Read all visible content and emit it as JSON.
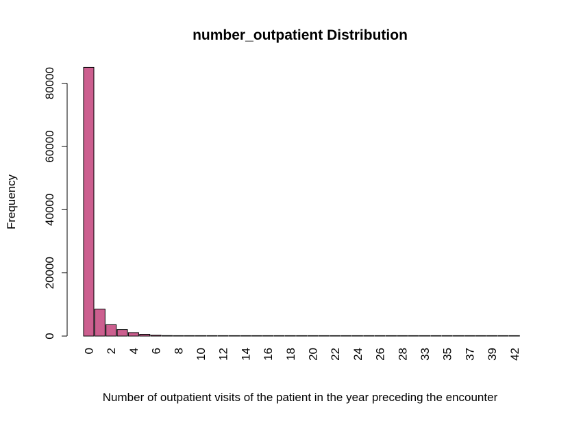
{
  "chart_data": {
    "type": "bar",
    "title": "number_outpatient Distribution",
    "xlabel": "Number of outpatient visits of the patient in the year preceding the encounter",
    "ylabel": "Frequency",
    "ylim": [
      0,
      85000
    ],
    "yticks": [
      "0",
      "20000",
      "40000",
      "60000",
      "80000"
    ],
    "bar_color": "#cc5f8f",
    "categories": [
      "0",
      "1",
      "2",
      "3",
      "4",
      "5",
      "6",
      "7",
      "8",
      "9",
      "10",
      "11",
      "12",
      "13",
      "14",
      "15",
      "16",
      "17",
      "18",
      "19",
      "20",
      "21",
      "22",
      "23",
      "24",
      "25",
      "26",
      "27",
      "28",
      "29",
      "33",
      "34",
      "35",
      "36",
      "37",
      "38",
      "39",
      "40",
      "42"
    ],
    "values": [
      85027,
      8547,
      3594,
      2042,
      1099,
      533,
      303,
      155,
      98,
      83,
      57,
      42,
      30,
      31,
      28,
      20,
      15,
      8,
      5,
      3,
      7,
      7,
      5,
      2,
      3,
      2,
      2,
      2,
      1,
      2,
      2,
      2,
      2,
      3,
      1,
      1,
      1,
      1,
      1
    ],
    "xtick_labels_shown": [
      "0",
      "2",
      "4",
      "6",
      "8",
      "10",
      "12",
      "14",
      "16",
      "18",
      "20",
      "22",
      "24",
      "26",
      "28",
      "33",
      "35",
      "37",
      "39",
      "42"
    ],
    "grid": false,
    "legend": "none"
  }
}
